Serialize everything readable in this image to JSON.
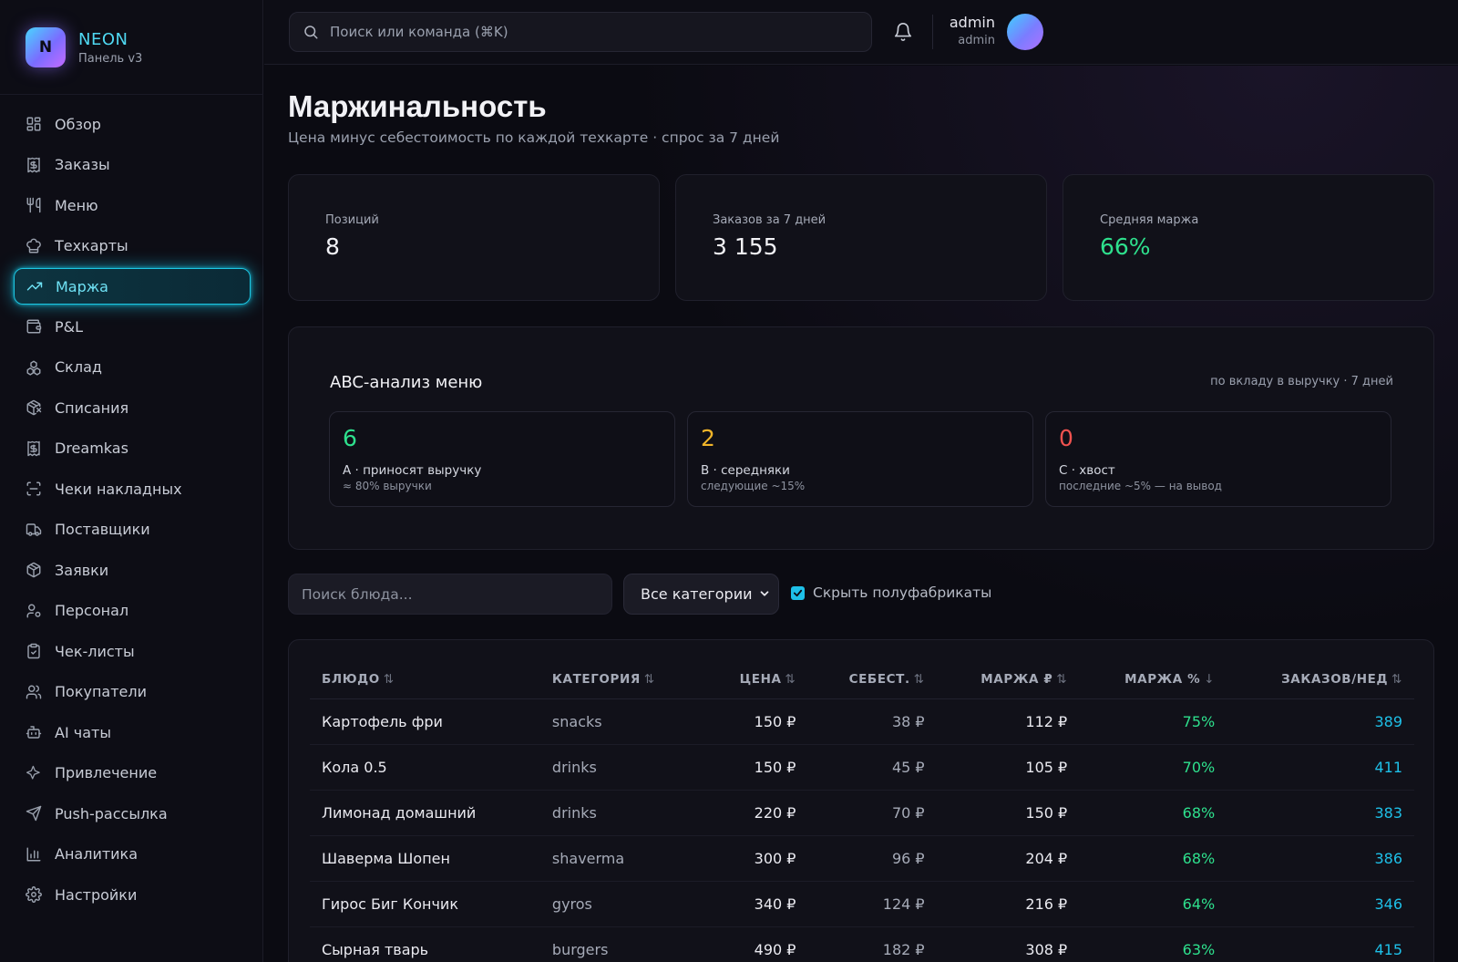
{
  "brand": {
    "logo_letter": "N",
    "name": "NEON",
    "subtitle": "Панель v3"
  },
  "sidebar": {
    "items": [
      {
        "label": "Обзор",
        "icon": "grid-icon"
      },
      {
        "label": "Заказы",
        "icon": "receipt-icon"
      },
      {
        "label": "Меню",
        "icon": "utensils-icon"
      },
      {
        "label": "Техкарты",
        "icon": "chef-hat-icon"
      },
      {
        "label": "Маржа",
        "icon": "trending-up-icon",
        "active": true
      },
      {
        "label": "P&L",
        "icon": "wallet-icon"
      },
      {
        "label": "Склад",
        "icon": "boxes-icon"
      },
      {
        "label": "Списания",
        "icon": "package-x-icon"
      },
      {
        "label": "Dreamkas",
        "icon": "receipt-icon"
      },
      {
        "label": "Чеки накладных",
        "icon": "scan-icon"
      },
      {
        "label": "Поставщики",
        "icon": "truck-icon"
      },
      {
        "label": "Заявки",
        "icon": "package-icon"
      },
      {
        "label": "Персонал",
        "icon": "user-cog-icon"
      },
      {
        "label": "Чек-листы",
        "icon": "clipboard-check-icon"
      },
      {
        "label": "Покупатели",
        "icon": "users-icon"
      },
      {
        "label": "AI чаты",
        "icon": "bot-icon"
      },
      {
        "label": "Привлечение",
        "icon": "sparkles-icon"
      },
      {
        "label": "Push-рассылка",
        "icon": "send-icon"
      },
      {
        "label": "Аналитика",
        "icon": "bar-chart-icon"
      },
      {
        "label": "Настройки",
        "icon": "settings-icon"
      }
    ]
  },
  "topbar": {
    "search_placeholder": "Поиск или команда (⌘K)",
    "user_name": "admin",
    "user_role": "admin"
  },
  "page": {
    "title": "Маржинальность",
    "subtitle": "Цена минус себестоимость по каждой техкарте · спрос за 7 дней"
  },
  "stats": [
    {
      "label": "Позиций",
      "value": "8"
    },
    {
      "label": "Заказов за 7 дней",
      "value": "3 155"
    },
    {
      "label": "Средняя маржа",
      "value": "66%"
    }
  ],
  "abc": {
    "title": "ABC-анализ меню",
    "note": "по вкладу в выручку · 7 дней",
    "cards": [
      {
        "value": "6",
        "label": "A · приносят выручку",
        "hint": "≈ 80% выручки",
        "color": "#2ee08d"
      },
      {
        "value": "2",
        "label": "B · середняки",
        "hint": "следующие ~15%",
        "color": "#f0b429"
      },
      {
        "value": "0",
        "label": "C · хвост",
        "hint": "последние ~5% — на вывод",
        "color": "#f0524f"
      }
    ]
  },
  "filters": {
    "search_placeholder": "Поиск блюда...",
    "category_value": "Все категории",
    "hide_semi_label": "Скрыть полуфабрикаты",
    "hide_semi_checked": true
  },
  "table": {
    "columns": [
      "БЛЮДО",
      "КАТЕГОРИЯ",
      "ЦЕНА",
      "СЕБЕСТ.",
      "МАРЖА ₽",
      "МАРЖА %",
      "ЗАКАЗОВ/НЕД"
    ],
    "sort_icons": [
      "⇅",
      "⇅",
      "⇅",
      "⇅",
      "⇅",
      "↓",
      "⇅"
    ],
    "rows": [
      [
        "Картофель фри",
        "snacks",
        "150 ₽",
        "38 ₽",
        "112 ₽",
        "75%",
        "389"
      ],
      [
        "Кола 0.5",
        "drinks",
        "150 ₽",
        "45 ₽",
        "105 ₽",
        "70%",
        "411"
      ],
      [
        "Лимонад домашний",
        "drinks",
        "220 ₽",
        "70 ₽",
        "150 ₽",
        "68%",
        "383"
      ],
      [
        "Шаверма Шопен",
        "shaverma",
        "300 ₽",
        "96 ₽",
        "204 ₽",
        "68%",
        "386"
      ],
      [
        "Гирос Биг Кончик",
        "gyros",
        "340 ₽",
        "124 ₽",
        "216 ₽",
        "64%",
        "346"
      ],
      [
        "Сырная тварь",
        "burgers",
        "490 ₽",
        "182 ₽",
        "308 ₽",
        "63%",
        "415"
      ]
    ]
  }
}
